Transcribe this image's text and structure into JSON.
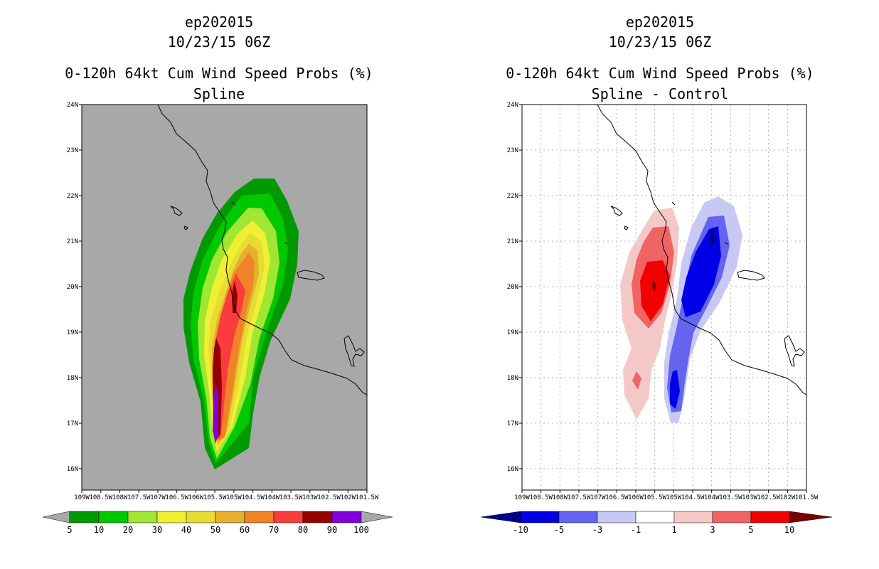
{
  "left_panel": {
    "title_line1": "ep202015",
    "title_line2": "10/23/15 06Z",
    "title_line3": "0-120h 64kt Cum Wind Speed Probs (%)",
    "title_line4": "Spline",
    "lat_ticks": [
      "24N",
      "23N",
      "22N",
      "21N",
      "20N",
      "19N",
      "18N",
      "17N",
      "16N"
    ],
    "lon_ticks": [
      "109W",
      "108.5W",
      "108W",
      "107.5W",
      "107W",
      "106.5W",
      "106W",
      "105.5W",
      "105W",
      "104.5W",
      "104W",
      "103.5W",
      "103W",
      "102.5W",
      "102W",
      "101.5W"
    ],
    "colorbar": {
      "labels": [
        "5",
        "10",
        "20",
        "30",
        "40",
        "50",
        "60",
        "70",
        "80",
        "90",
        "100"
      ],
      "colors": [
        "#009a00",
        "#00c800",
        "#a0e632",
        "#f0f032",
        "#e6dc32",
        "#e6af2d",
        "#f08228",
        "#fa3c3c",
        "#960000",
        "#8200dc"
      ],
      "end_color": "#a8a8a8"
    },
    "background_color": "#a8a8a8"
  },
  "right_panel": {
    "title_line1": "ep202015",
    "title_line2": "10/23/15 06Z",
    "title_line3": "0-120h 64kt Cum Wind Speed Probs (%)",
    "title_line4": "Spline - Control",
    "lat_ticks": [
      "24N",
      "23N",
      "22N",
      "21N",
      "20N",
      "19N",
      "18N",
      "17N",
      "16N"
    ],
    "lon_ticks": [
      "109W",
      "108.5W",
      "108W",
      "107.5W",
      "107W",
      "106.5W",
      "106W",
      "105.5W",
      "105W",
      "104.5W",
      "104W",
      "103.5W",
      "103W",
      "102.5W",
      "102W",
      "101.5W"
    ],
    "colorbar": {
      "labels": [
        "-10",
        "-5",
        "-3",
        "-1",
        "1",
        "3",
        "5",
        "10"
      ],
      "colors": [
        "#0000e6",
        "#6464f0",
        "#c8c8f5",
        "#ffffff",
        "#f5c8c8",
        "#f06464",
        "#f00000"
      ],
      "low_end_color": "#00008c",
      "high_end_color": "#780000"
    }
  }
}
